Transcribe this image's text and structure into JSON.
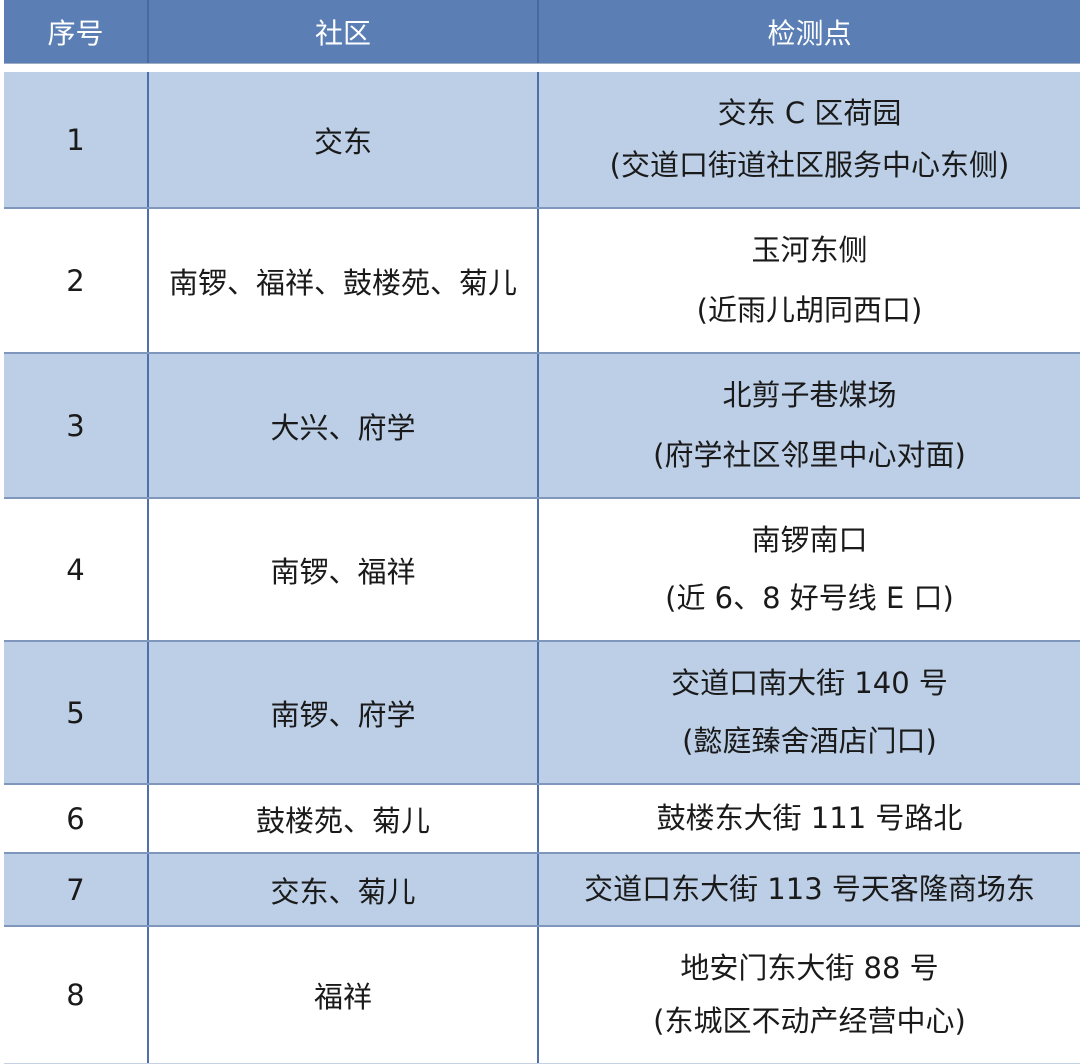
{
  "colors": {
    "header_bg": "#5b7fb5",
    "header_text": "#ffffff",
    "row_shaded_bg": "#bccfe6",
    "row_plain_bg": "#ffffff",
    "grid_vertical_line": "#4d71a8",
    "grid_horizontal_line": "#8097bd",
    "body_text": "#1a1a1a"
  },
  "table": {
    "columns": [
      {
        "key": "no",
        "label": "序号"
      },
      {
        "key": "community",
        "label": "社区"
      },
      {
        "key": "point",
        "label": "检测点"
      }
    ],
    "rows": [
      {
        "no": "1",
        "community": "交东",
        "point": [
          "交东 C 区荷园",
          "(交道口街道社区服务中心东侧)"
        ],
        "shaded": true
      },
      {
        "no": "2",
        "community": "南锣、福祥、鼓楼苑、菊儿",
        "point": [
          "玉河东侧",
          "(近雨儿胡同西口)"
        ],
        "shaded": false
      },
      {
        "no": "3",
        "community": "大兴、府学",
        "point": [
          "北剪子巷煤场",
          "(府学社区邻里中心对面)"
        ],
        "shaded": true
      },
      {
        "no": "4",
        "community": "南锣、福祥",
        "point": [
          "南锣南口",
          "(近 6、8 好号线 E 口)"
        ],
        "shaded": false
      },
      {
        "no": "5",
        "community": "南锣、府学",
        "point": [
          "交道口南大街 140 号",
          "(懿庭臻舍酒店门口)"
        ],
        "shaded": true
      },
      {
        "no": "6",
        "community": "鼓楼苑、菊儿",
        "point": [
          "鼓楼东大街 111 号路北"
        ],
        "shaded": false
      },
      {
        "no": "7",
        "community": "交东、菊儿",
        "point": [
          "交道口东大街 113 号天客隆商场东"
        ],
        "shaded": true
      },
      {
        "no": "8",
        "community": "福祥",
        "point": [
          "地安门东大街 88 号",
          "(东城区不动产经营中心)"
        ],
        "shaded": false
      }
    ]
  }
}
